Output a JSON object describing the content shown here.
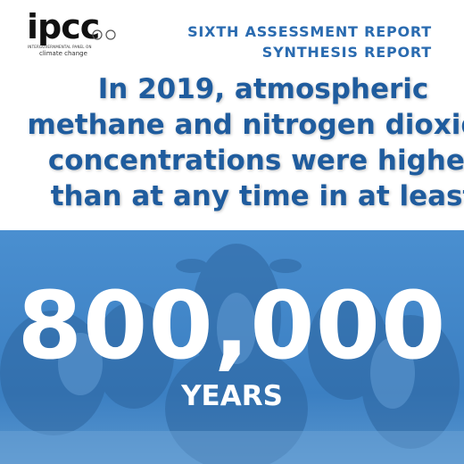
{
  "logo": {
    "name": "ipcc",
    "subtitle": "INTERGOVERNMENTAL PANEL ON",
    "tagline": "climate change"
  },
  "header": {
    "line1": "SIXTH ASSESSMENT REPORT",
    "line2": "SYNTHESIS REPORT"
  },
  "headline": {
    "lines": [
      "In 2019, atmospheric",
      "methane and nitrogen dioxide",
      "concentrations were higher",
      "than at any time in at least"
    ]
  },
  "statistic": {
    "value": "800,000",
    "unit": "YEARS"
  }
}
